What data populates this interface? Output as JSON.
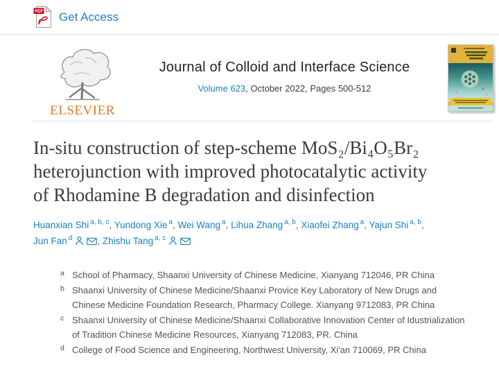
{
  "colors": {
    "link_blue": "#1b80c2",
    "elsevier_orange": "#eb7423",
    "divider_gray": "#e5e5e5",
    "title_text": "#3e3b39",
    "pdf_red": "#d0021b"
  },
  "top_bar": {
    "get_access_label": "Get Access",
    "pdf_icon": "pdf-file-icon"
  },
  "journal_header": {
    "publisher_wordmark": "ELSEVIER",
    "logo_icon": "elsevier-tree-logo",
    "journal_title": "Journal of Colloid and Interface Science",
    "volume_link": "Volume 623",
    "issue_info": ", October 2022, Pages 500-512",
    "cover_icon": "journal-cover-thumbnail"
  },
  "article": {
    "title": "In-situ construction of step-scheme MoS₂/Bi₄O₅Br₂ heterojunction with improved photocatalytic activity of Rhodamine B degradation and disinfection"
  },
  "authors": {
    "person_icon": "person-icon",
    "envelope_icon": "envelope-icon",
    "list": [
      {
        "name": "Huanxian Shi",
        "sup": "a, b, c",
        "icons": [],
        "sep": ", "
      },
      {
        "name": "Yundong Xie",
        "sup": "a",
        "icons": [],
        "sep": ", "
      },
      {
        "name": "Wei Wang",
        "sup": "a",
        "icons": [],
        "sep": ", "
      },
      {
        "name": "Lihua Zhang",
        "sup": "a, b",
        "icons": [],
        "sep": ", "
      },
      {
        "name": "Xiaofei Zhang",
        "sup": "a",
        "icons": [],
        "sep": ", "
      },
      {
        "name": "Yajun Shi",
        "sup": "a, b",
        "icons": [],
        "sep": ", "
      },
      {
        "name": "Jun Fan",
        "sup": "d",
        "icons": [
          "person",
          "envelope"
        ],
        "sep": ", "
      },
      {
        "name": "Zhishu Tang",
        "sup": "a, c",
        "icons": [
          "person",
          "envelope"
        ],
        "sep": ""
      }
    ]
  },
  "affiliations": {
    "list": [
      {
        "label": "a",
        "text": "School of Pharmacy, Shaanxi University of Chinese Medicine, Xianyang 712046, PR China"
      },
      {
        "label": "b",
        "text": "Shaanxi University of Chinese Medicine/Shaanxi Provice Key Laboratory of New Drugs and Chinese Medicine Foundation Research, Pharmacy College. Xianyang 9712083, PR China"
      },
      {
        "label": "c",
        "text": "Shaanxi University of Chinese Medicine/Shaanxi Collaborative Innovation Center of Idustrialization of Tradition Chinese Medicine Resources, Xianyang 712083, PR. China"
      },
      {
        "label": "d",
        "text": "College of Food Science and Engineering, Northwest University, Xi'an 710069, PR China"
      }
    ]
  }
}
